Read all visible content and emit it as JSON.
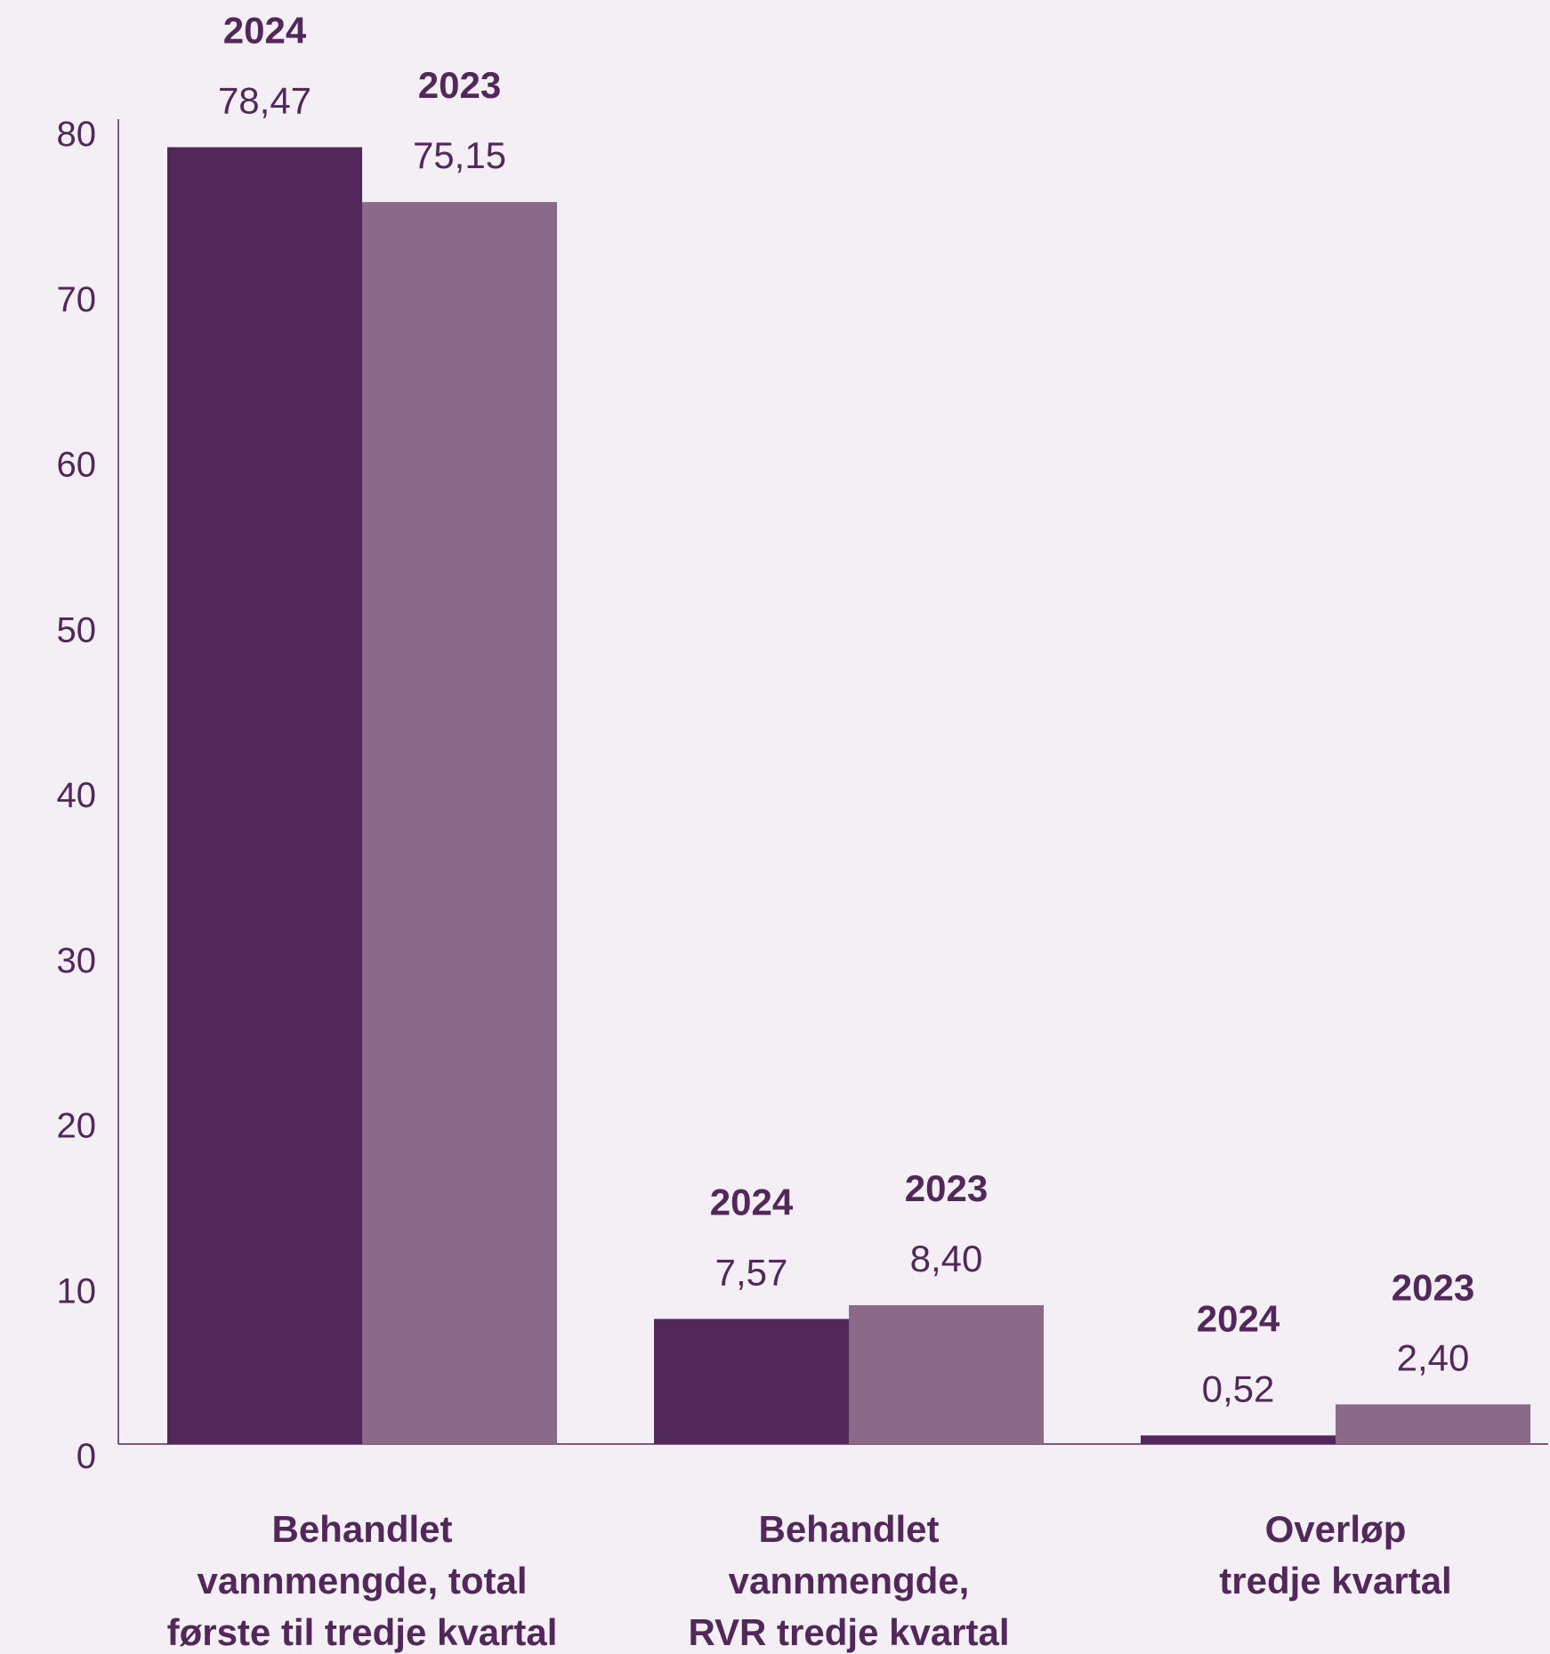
{
  "chart_data": {
    "type": "bar",
    "title": "",
    "xlabel": "",
    "ylabel": "",
    "ylim": [
      0,
      80
    ],
    "yticks": [
      0,
      10,
      20,
      30,
      40,
      50,
      60,
      70,
      80
    ],
    "grid": false,
    "legend": "none",
    "categories": [
      [
        "Behandlet",
        "vannmengde, total",
        "første til tredje kvartal"
      ],
      [
        "Behandlet",
        "vannmengde,",
        "RVR tredje kvartal"
      ],
      [
        "Overløp",
        "tredje kvartal"
      ]
    ],
    "series": [
      {
        "label": "2024",
        "color": "#52285a",
        "values": [
          78.47,
          7.57,
          0.52
        ],
        "value_labels": [
          "78,47",
          "7,57",
          "0,52"
        ]
      },
      {
        "label": "2023",
        "color": "#8b6a89",
        "values": [
          75.15,
          8.4,
          2.4
        ],
        "value_labels": [
          "75,15",
          "8,40",
          "2,40"
        ]
      }
    ],
    "axis_color": "#52285a",
    "text_color": "#52285a"
  }
}
